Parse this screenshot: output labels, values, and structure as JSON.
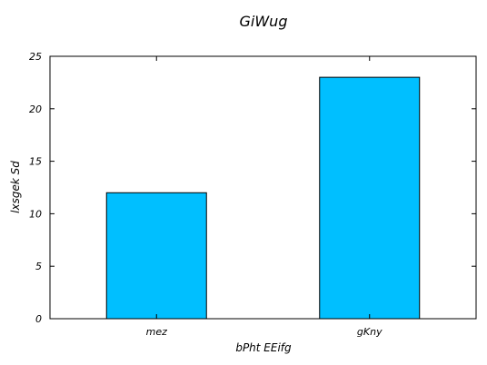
{
  "chart_data": {
    "type": "bar",
    "title": "GiWug",
    "xlabel": "bPht EEifg",
    "ylabel": "lxsgek Sd",
    "categories": [
      "mez",
      "gKny"
    ],
    "values": [
      12,
      23
    ],
    "ylim": [
      0,
      25
    ],
    "yticks": [
      0,
      5,
      10,
      15,
      20,
      25
    ],
    "bar_color": "#00bfff",
    "grid": false,
    "legend": "none"
  }
}
